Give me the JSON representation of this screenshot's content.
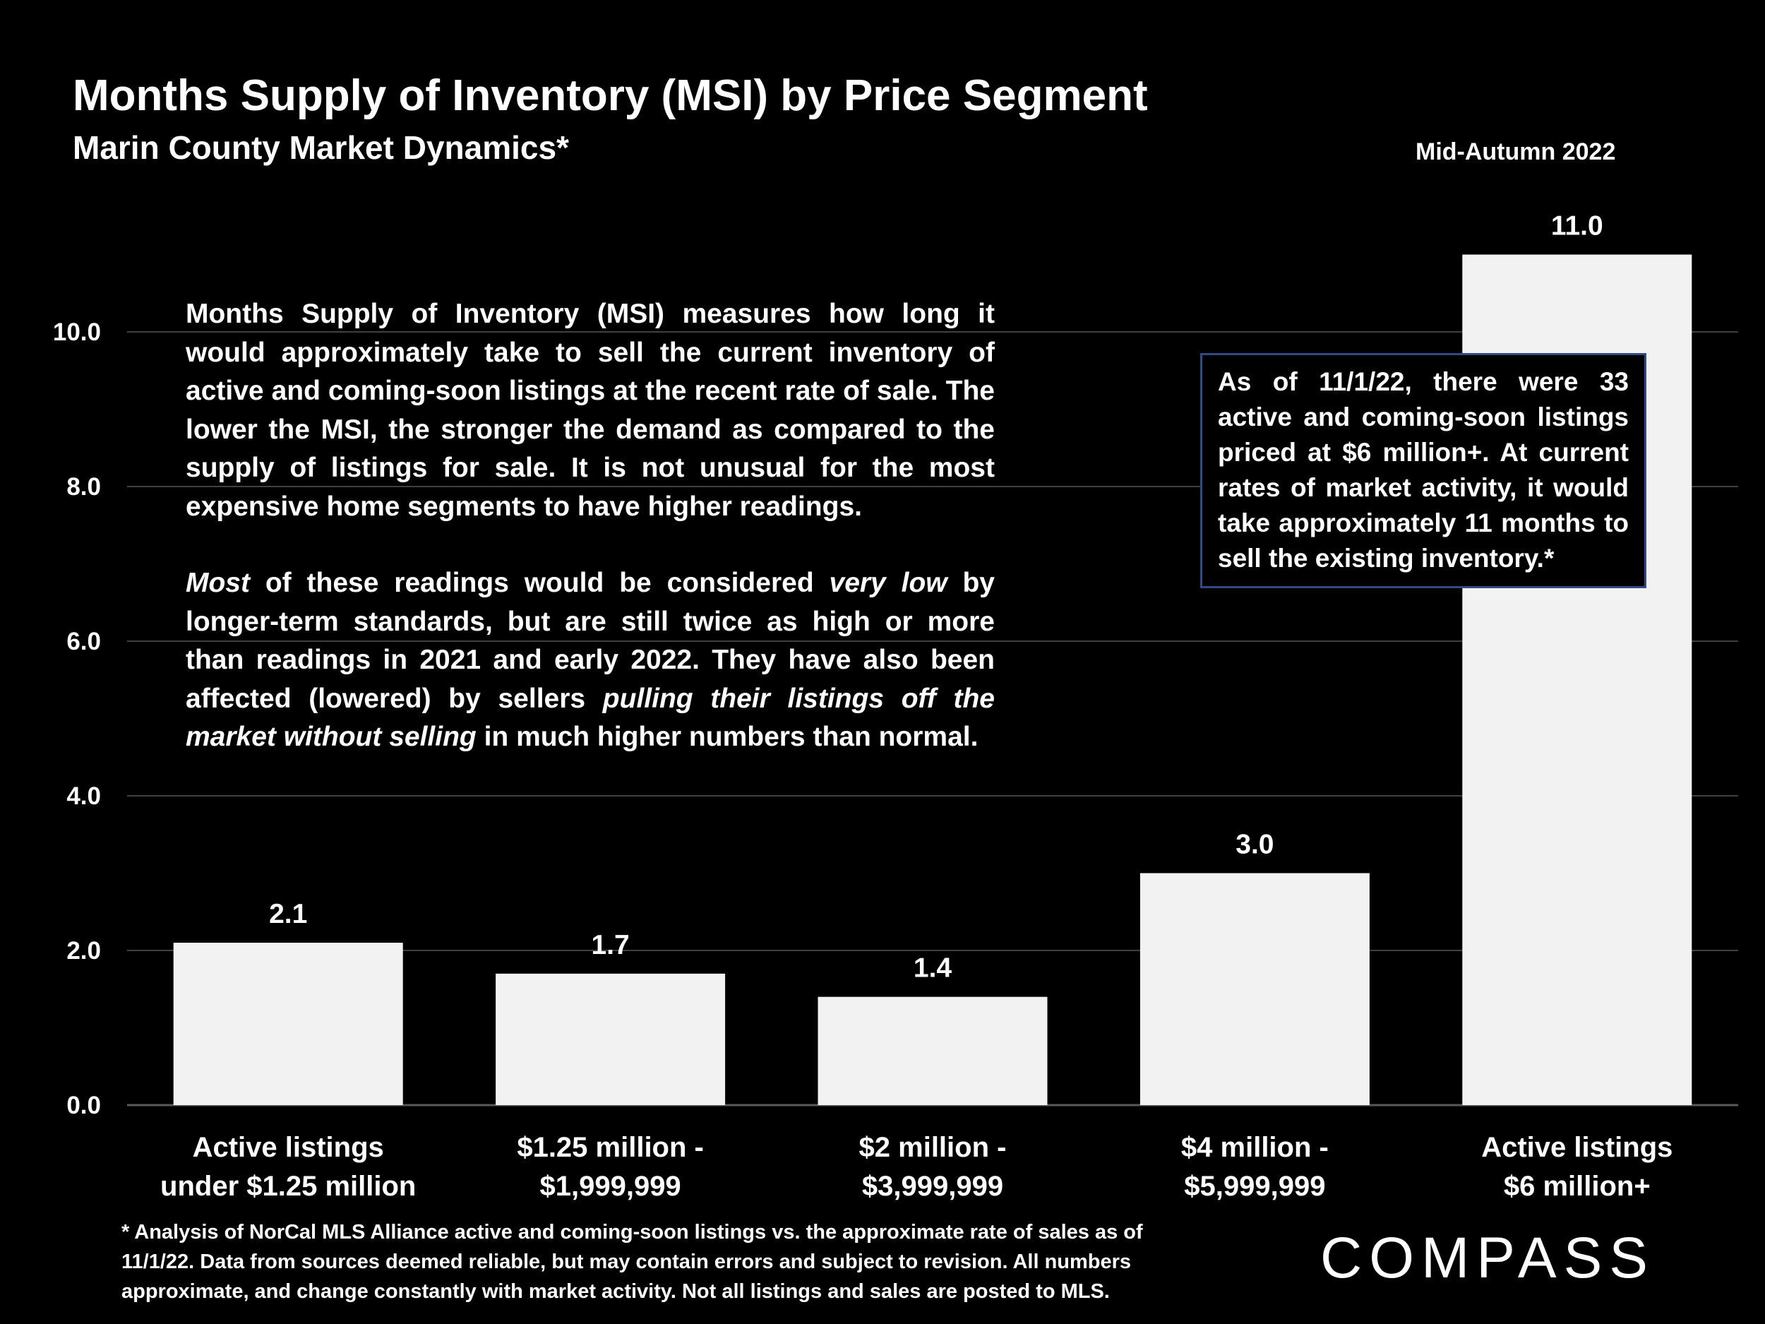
{
  "header": {
    "title": "Months Supply of Inventory (MSI) by Price Segment",
    "subtitle": "Marin County Market Dynamics*",
    "period": "Mid-Autumn 2022"
  },
  "explanation": {
    "p1": "Months Supply of Inventory (MSI) measures how long it would approximately take to sell the current inventory of active and coming-soon listings at the recent rate of sale. The lower the MSI, the stronger the demand as compared to the supply of listings for sale. It is not unusual for the most expensive home segments to have higher readings.",
    "p2_most": "Most",
    "p2_a": " of these readings would be considered ",
    "p2_very_low": "very low",
    "p2_b": " by longer-term standards, but are still twice as high or more than readings in 2021 and early 2022. They have also been affected (lowered) by sellers ",
    "p2_pulling": "pulling their listings off the market without selling",
    "p2_c": " in much higher numbers than normal."
  },
  "callout": {
    "text": "As of 11/1/22, there were 33 active and coming-soon listings priced at $6 million+. At current rates of market activity, it would take approximately 11 months to sell the existing inventory.*"
  },
  "footnote": "* Analysis of NorCal MLS Alliance active and coming-soon listings vs. the approximate rate of sales as of 11/1/22. Data from sources deemed reliable, but may contain errors and subject to revision. All numbers approximate, and change constantly with market activity. Not all listings and sales are posted to MLS.",
  "brand": {
    "logo_text": "COMPASS"
  },
  "colors": {
    "background": "#000000",
    "bar": "#f2f2f2",
    "grid": "#404040",
    "callout_border": "#2f4a86",
    "text": "#ffffff"
  },
  "chart_data": {
    "type": "bar",
    "categories": [
      [
        "Active listings",
        "under $1.25 million"
      ],
      [
        "$1.25 million -",
        "$1,999,999"
      ],
      [
        "$2 million -",
        "$3,999,999"
      ],
      [
        "$4 million -",
        "$5,999,999"
      ],
      [
        "Active listings",
        "$6 million+"
      ]
    ],
    "values": [
      2.1,
      1.7,
      1.4,
      3.0,
      11.0
    ],
    "value_labels": [
      "2.1",
      "1.7",
      "1.4",
      "3.0",
      "11.0"
    ],
    "ylim": [
      0,
      11
    ],
    "yticks": [
      0,
      2,
      4,
      6,
      8,
      10
    ],
    "ytick_labels": [
      "0.0",
      "2.0",
      "4.0",
      "6.0",
      "8.0",
      "10.0"
    ],
    "grid": true,
    "legend": false
  }
}
